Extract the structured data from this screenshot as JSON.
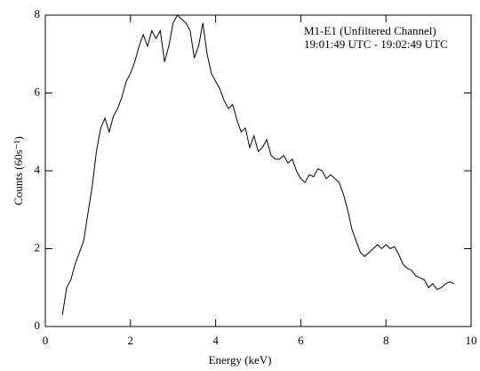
{
  "chart_data": {
    "type": "line",
    "xlabel": "Energy (keV)",
    "ylabel": "Counts (60s⁻¹)",
    "annotations": [
      "M1-E1 (Unfiltered Channel)",
      "19:01:49 UTC - 19:02:49 UTC"
    ],
    "xlim": [
      0,
      10
    ],
    "xticks": [
      0,
      2,
      4,
      6,
      8,
      10
    ],
    "ylim": [
      0,
      8
    ],
    "yticks": [
      0,
      2,
      4,
      6,
      8
    ],
    "series": [
      {
        "color": "#000000",
        "x": [
          0.4,
          0.5,
          0.6,
          0.7,
          0.8,
          0.9,
          1.0,
          1.1,
          1.2,
          1.3,
          1.4,
          1.5,
          1.6,
          1.7,
          1.8,
          1.9,
          2.0,
          2.1,
          2.2,
          2.3,
          2.4,
          2.5,
          2.6,
          2.7,
          2.8,
          2.9,
          3.0,
          3.1,
          3.2,
          3.3,
          3.4,
          3.5,
          3.6,
          3.7,
          3.8,
          3.9,
          4.0,
          4.1,
          4.2,
          4.3,
          4.4,
          4.5,
          4.6,
          4.7,
          4.8,
          4.9,
          5.0,
          5.1,
          5.2,
          5.3,
          5.4,
          5.5,
          5.6,
          5.7,
          5.8,
          5.9,
          6.0,
          6.1,
          6.2,
          6.3,
          6.4,
          6.5,
          6.6,
          6.7,
          6.8,
          6.9,
          7.0,
          7.1,
          7.2,
          7.3,
          7.4,
          7.5,
          7.6,
          7.7,
          7.8,
          7.9,
          8.0,
          8.1,
          8.2,
          8.3,
          8.4,
          8.5,
          8.6,
          8.7,
          8.8,
          8.9,
          9.0,
          9.1,
          9.2,
          9.3,
          9.4,
          9.5,
          9.6
        ],
        "values": [
          0.3,
          1.0,
          1.2,
          1.6,
          1.9,
          2.2,
          2.9,
          3.6,
          4.5,
          5.1,
          5.35,
          5.0,
          5.4,
          5.6,
          5.9,
          6.3,
          6.5,
          6.8,
          7.2,
          7.5,
          7.2,
          7.6,
          7.4,
          7.6,
          6.8,
          7.2,
          7.8,
          8.0,
          7.9,
          7.8,
          7.6,
          6.9,
          7.2,
          7.8,
          7.0,
          6.5,
          6.3,
          6.1,
          5.8,
          5.6,
          5.7,
          5.3,
          5.0,
          5.1,
          4.6,
          4.9,
          4.5,
          4.6,
          4.8,
          4.4,
          4.3,
          4.3,
          4.4,
          4.2,
          4.3,
          4.0,
          3.8,
          3.7,
          3.9,
          3.85,
          4.05,
          4.0,
          3.8,
          3.9,
          3.8,
          3.7,
          3.4,
          3.0,
          2.5,
          2.2,
          1.9,
          1.8,
          1.9,
          2.0,
          2.1,
          2.0,
          2.1,
          2.0,
          2.05,
          1.85,
          1.6,
          1.5,
          1.45,
          1.3,
          1.25,
          1.2,
          1.0,
          1.1,
          0.95,
          1.0,
          1.1,
          1.15,
          1.1
        ]
      }
    ]
  }
}
